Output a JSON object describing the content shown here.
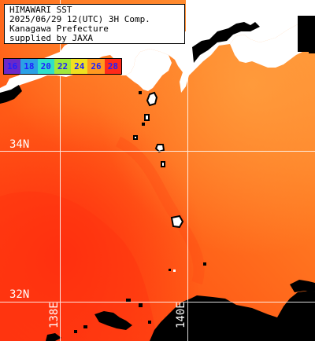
{
  "title_lines": [
    "HIMAWARI SST",
    "2025/06/29 12(UTC) 3H Comp.",
    "Kanagawa Prefecture",
    "supplied by JAXA"
  ],
  "color_scale": {
    "labels": [
      "16",
      "18",
      "20",
      "22",
      "24",
      "26",
      "28"
    ],
    "colors": [
      "#6a28c8",
      "#2aa0e6",
      "#2ee0c8",
      "#a0e83c",
      "#f0e020",
      "#ff9a20",
      "#ff2a1a"
    ],
    "text_colors": [
      "#2020ff",
      "#2020ff",
      "#2020ff",
      "#2020ff",
      "#2020ff",
      "#2020ff",
      "#2020ff"
    ]
  },
  "grid": {
    "latitudes": [
      "34N",
      "32N"
    ],
    "longitudes": [
      "138E",
      "140E"
    ]
  },
  "colors": {
    "sea_warm": "#ff6a1a",
    "sea_warmer": "#ff4a12",
    "sea_cool": "#ff9a3a",
    "land": "#ffffff",
    "no_data": "#000000",
    "grid_line": "#ffffff"
  }
}
